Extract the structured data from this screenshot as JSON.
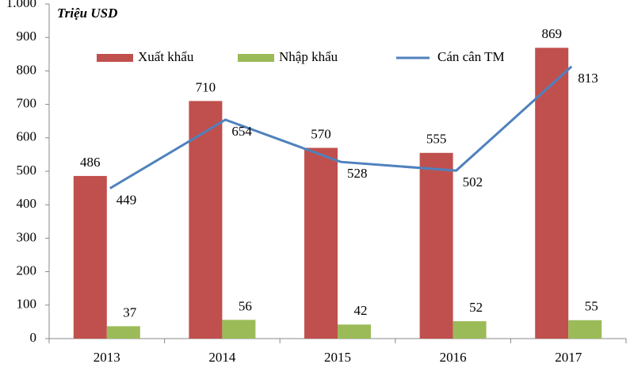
{
  "chart_data": {
    "type": "bar",
    "y_axis_label": "Triệu USD",
    "categories": [
      "2013",
      "2014",
      "2015",
      "2016",
      "2017"
    ],
    "series": [
      {
        "name": "Xuất khẩu",
        "type": "bar",
        "color": "#c0504d",
        "values": [
          486,
          710,
          570,
          555,
          869
        ]
      },
      {
        "name": "Nhập khẩu",
        "type": "bar",
        "color": "#9bbb59",
        "values": [
          37,
          56,
          42,
          52,
          55
        ]
      },
      {
        "name": "Cán cân TM",
        "type": "line",
        "color": "#4f81bd",
        "values": [
          449,
          654,
          528,
          502,
          813
        ]
      }
    ],
    "ylim": [
      0,
      1000
    ],
    "yticks": [
      0,
      100,
      200,
      300,
      400,
      500,
      600,
      700,
      800,
      900,
      {
        "value": 1000,
        "label": "1.000"
      }
    ],
    "legend": "top",
    "grid": false
  }
}
